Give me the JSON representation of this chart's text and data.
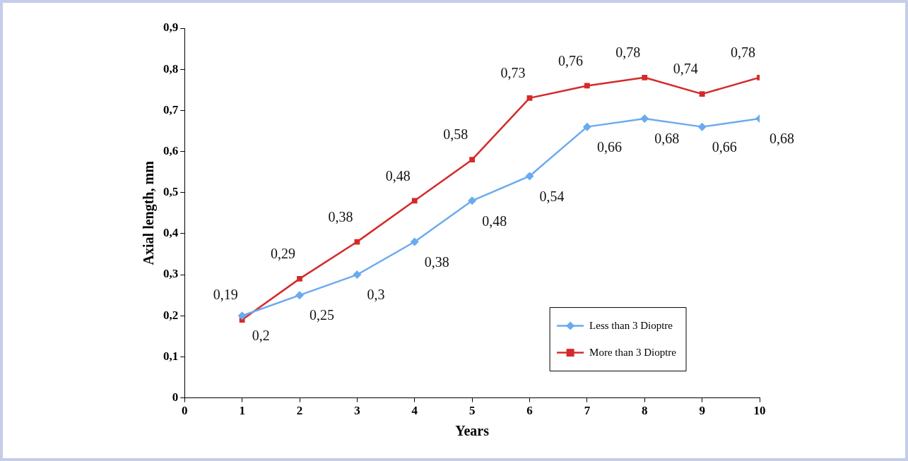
{
  "chart_data": {
    "type": "line",
    "xlabel": "Years",
    "ylabel": "Axial length, mm",
    "x": [
      1,
      2,
      3,
      4,
      5,
      6,
      7,
      8,
      9,
      10
    ],
    "xlim": [
      0,
      10
    ],
    "xticks": [
      0,
      1,
      2,
      3,
      4,
      5,
      6,
      7,
      8,
      9,
      10
    ],
    "ylim": [
      0,
      0.9
    ],
    "yticks": [
      {
        "value": 0,
        "label": "0"
      },
      {
        "value": 0.1,
        "label": "0,1"
      },
      {
        "value": 0.2,
        "label": "0,2"
      },
      {
        "value": 0.3,
        "label": "0,3"
      },
      {
        "value": 0.4,
        "label": "0,4"
      },
      {
        "value": 0.5,
        "label": "0,5"
      },
      {
        "value": 0.6,
        "label": "0,6"
      },
      {
        "value": 0.7,
        "label": "0,7"
      },
      {
        "value": 0.8,
        "label": "0,8"
      },
      {
        "value": 0.9,
        "label": "0,9"
      }
    ],
    "grid": false,
    "legend": "bottom right",
    "line_style": "solid",
    "series": [
      {
        "name": "Less than 3 Dioptre",
        "color": "#6aaaf0",
        "marker": "diamond",
        "values": [
          0.2,
          0.25,
          0.3,
          0.38,
          0.48,
          0.54,
          0.66,
          0.68,
          0.66,
          0.68
        ],
        "value_labels": [
          "0,2",
          "0,25",
          "0,3",
          "0,38",
          "0,48",
          "0,54",
          "0,66",
          "0,68",
          "0,66",
          "0,68"
        ]
      },
      {
        "name": "More than 3 Dioptre",
        "color": "#d42a2a",
        "marker": "square",
        "values": [
          0.19,
          0.29,
          0.38,
          0.48,
          0.58,
          0.73,
          0.76,
          0.78,
          0.74,
          0.78
        ],
        "value_labels": [
          "0,19",
          "0,29",
          "0,38",
          "0,48",
          "0,58",
          "0,73",
          "0,76",
          "0,78",
          "0,74",
          "0,78"
        ]
      }
    ]
  }
}
